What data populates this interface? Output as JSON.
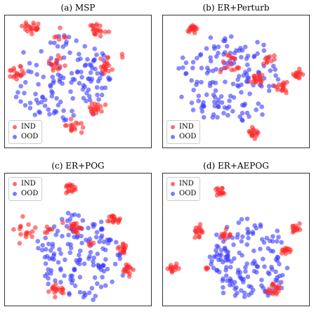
{
  "colors": {
    "ind": "#ff2a2a",
    "ood": "#3a3aff"
  },
  "chart_data": [
    {
      "type": "scatter",
      "title": "(a) MSP",
      "legend": [
        "IND",
        "OOD"
      ],
      "legend_position": "bottom-left",
      "grid": false,
      "xlim": [
        0,
        1
      ],
      "ylim": [
        0,
        1
      ],
      "series": [
        {
          "name": "IND",
          "clusters": [
            {
              "cx": 0.18,
              "cy": 0.91,
              "r": 0.05,
              "n": 22
            },
            {
              "cx": 0.63,
              "cy": 0.89,
              "r": 0.05,
              "n": 20
            },
            {
              "cx": 0.08,
              "cy": 0.56,
              "r": 0.05,
              "n": 18
            },
            {
              "cx": 0.34,
              "cy": 0.64,
              "r": 0.06,
              "n": 14
            },
            {
              "cx": 0.7,
              "cy": 0.62,
              "r": 0.05,
              "n": 18
            },
            {
              "cx": 0.62,
              "cy": 0.3,
              "r": 0.045,
              "n": 18
            },
            {
              "cx": 0.48,
              "cy": 0.16,
              "r": 0.05,
              "n": 16
            },
            {
              "cx": 0.38,
              "cy": 0.84,
              "r": 0.04,
              "n": 6
            },
            {
              "cx": 0.8,
              "cy": 0.7,
              "r": 0.02,
              "n": 2
            }
          ]
        },
        {
          "name": "OOD",
          "region": {
            "cx": 0.4,
            "cy": 0.52,
            "rx": 0.33,
            "ry": 0.32
          },
          "n": 135
        }
      ]
    },
    {
      "type": "scatter",
      "title": "(b) ER+Perturb",
      "legend": [
        "IND",
        "OOD"
      ],
      "legend_position": "bottom-left",
      "grid": false,
      "xlim": [
        0,
        1
      ],
      "ylim": [
        0,
        1
      ],
      "series": [
        {
          "name": "IND",
          "clusters": [
            {
              "cx": 0.2,
              "cy": 0.9,
              "r": 0.04,
              "n": 18
            },
            {
              "cx": 0.44,
              "cy": 0.62,
              "r": 0.07,
              "n": 16
            },
            {
              "cx": 0.72,
              "cy": 0.66,
              "r": 0.04,
              "n": 10
            },
            {
              "cx": 0.65,
              "cy": 0.52,
              "r": 0.05,
              "n": 18
            },
            {
              "cx": 0.93,
              "cy": 0.55,
              "r": 0.035,
              "n": 14
            },
            {
              "cx": 0.8,
              "cy": 0.46,
              "r": 0.04,
              "n": 16
            },
            {
              "cx": 0.62,
              "cy": 0.11,
              "r": 0.04,
              "n": 16
            }
          ]
        },
        {
          "name": "OOD",
          "region": {
            "cx": 0.46,
            "cy": 0.52,
            "rx": 0.34,
            "ry": 0.32
          },
          "n": 150
        }
      ]
    },
    {
      "type": "scatter",
      "title": "(c) ER+POG",
      "legend": [
        "IND",
        "OOD"
      ],
      "legend_position": "top-left",
      "grid": false,
      "xlim": [
        0,
        1
      ],
      "ylim": [
        0,
        1
      ],
      "series": [
        {
          "name": "IND",
          "clusters": [
            {
              "cx": 0.45,
              "cy": 0.88,
              "r": 0.045,
              "n": 16
            },
            {
              "cx": 0.14,
              "cy": 0.56,
              "r": 0.06,
              "n": 16
            },
            {
              "cx": 0.31,
              "cy": 0.57,
              "r": 0.03,
              "n": 6
            },
            {
              "cx": 0.47,
              "cy": 0.59,
              "r": 0.05,
              "n": 18
            },
            {
              "cx": 0.75,
              "cy": 0.66,
              "r": 0.04,
              "n": 18
            },
            {
              "cx": 0.81,
              "cy": 0.43,
              "r": 0.035,
              "n": 16
            },
            {
              "cx": 0.84,
              "cy": 0.27,
              "r": 0.04,
              "n": 16
            },
            {
              "cx": 0.36,
              "cy": 0.12,
              "r": 0.05,
              "n": 18
            },
            {
              "cx": 0.58,
              "cy": 0.48,
              "r": 0.03,
              "n": 4
            }
          ]
        },
        {
          "name": "OOD",
          "region": {
            "cx": 0.52,
            "cy": 0.38,
            "rx": 0.28,
            "ry": 0.3
          },
          "n": 150
        }
      ]
    },
    {
      "type": "scatter",
      "title": "(d) ER+AEPOG",
      "legend": [
        "IND",
        "OOD"
      ],
      "legend_position": "top-left",
      "grid": false,
      "xlim": [
        0,
        1
      ],
      "ylim": [
        0,
        1
      ],
      "series": [
        {
          "name": "IND",
          "clusters": [
            {
              "cx": 0.39,
              "cy": 0.87,
              "r": 0.04,
              "n": 14
            },
            {
              "cx": 0.24,
              "cy": 0.56,
              "r": 0.05,
              "n": 16
            },
            {
              "cx": 0.43,
              "cy": 0.54,
              "r": 0.035,
              "n": 12
            },
            {
              "cx": 0.9,
              "cy": 0.58,
              "r": 0.035,
              "n": 14
            },
            {
              "cx": 0.84,
              "cy": 0.43,
              "r": 0.035,
              "n": 14
            },
            {
              "cx": 0.07,
              "cy": 0.28,
              "r": 0.035,
              "n": 14
            },
            {
              "cx": 0.77,
              "cy": 0.13,
              "r": 0.05,
              "n": 18
            },
            {
              "cx": 0.3,
              "cy": 0.28,
              "r": 0.03,
              "n": 4
            }
          ]
        },
        {
          "name": "OOD",
          "region": {
            "cx": 0.58,
            "cy": 0.34,
            "rx": 0.26,
            "ry": 0.3
          },
          "n": 150
        }
      ]
    }
  ]
}
